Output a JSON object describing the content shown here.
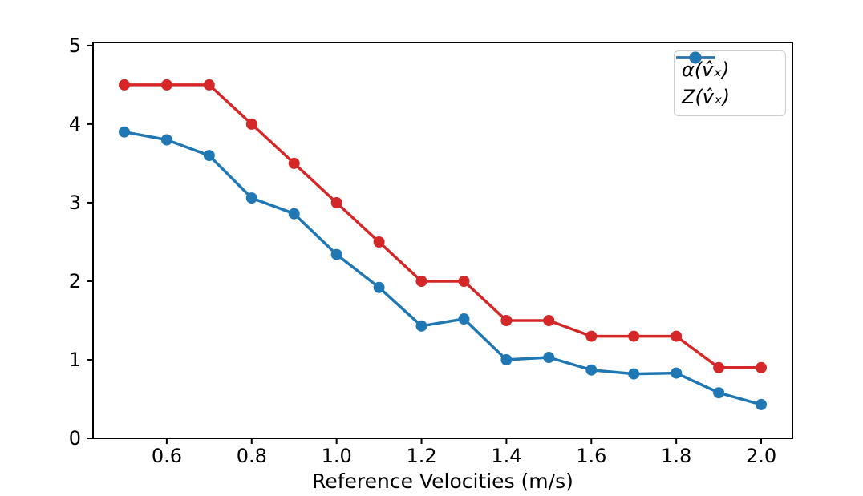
{
  "figure": {
    "background": "#ffffff",
    "axis_color": "#000000"
  },
  "legend": {
    "position": "upper right",
    "items": [
      {
        "label": "α(v̂ₓ)",
        "color": "#d62728"
      },
      {
        "label": "Z(v̂ₓ)",
        "color": "#1f77b4"
      }
    ]
  },
  "chart_data": {
    "type": "line",
    "title": "",
    "xlabel": "Reference Velocities (m/s)",
    "ylabel": "",
    "x": [
      0.5,
      0.6,
      0.7,
      0.8,
      0.9,
      1.0,
      1.1,
      1.2,
      1.3,
      1.4,
      1.5,
      1.6,
      1.7,
      1.8,
      1.9,
      2.0
    ],
    "series": [
      {
        "name": "α(v̂ₓ)",
        "color": "#d62728",
        "values": [
          4.5,
          4.5,
          4.5,
          4.0,
          3.5,
          3.0,
          2.5,
          2.0,
          2.0,
          1.5,
          1.5,
          1.3,
          1.3,
          1.3,
          0.9,
          0.9
        ]
      },
      {
        "name": "Z(v̂ₓ)",
        "color": "#1f77b4",
        "values": [
          3.9,
          3.8,
          3.6,
          3.06,
          2.86,
          2.34,
          1.92,
          1.43,
          1.52,
          1.0,
          1.03,
          0.87,
          0.82,
          0.83,
          0.58,
          0.43
        ]
      }
    ],
    "xlim": [
      0.4264,
      2.0736
    ],
    "ylim": [
      0,
      5.04
    ],
    "xticks": [
      0.6,
      0.8,
      1.0,
      1.2,
      1.4,
      1.6,
      1.8,
      2.0
    ],
    "xtick_labels": [
      "0.6",
      "0.8",
      "1.0",
      "1.2",
      "1.4",
      "1.6",
      "1.8",
      "2.0"
    ],
    "yticks": [
      0,
      1,
      2,
      3,
      4,
      5
    ],
    "ytick_labels": [
      "0",
      "1",
      "2",
      "3",
      "4",
      "5"
    ],
    "grid": false,
    "legend_position": "upper right"
  }
}
